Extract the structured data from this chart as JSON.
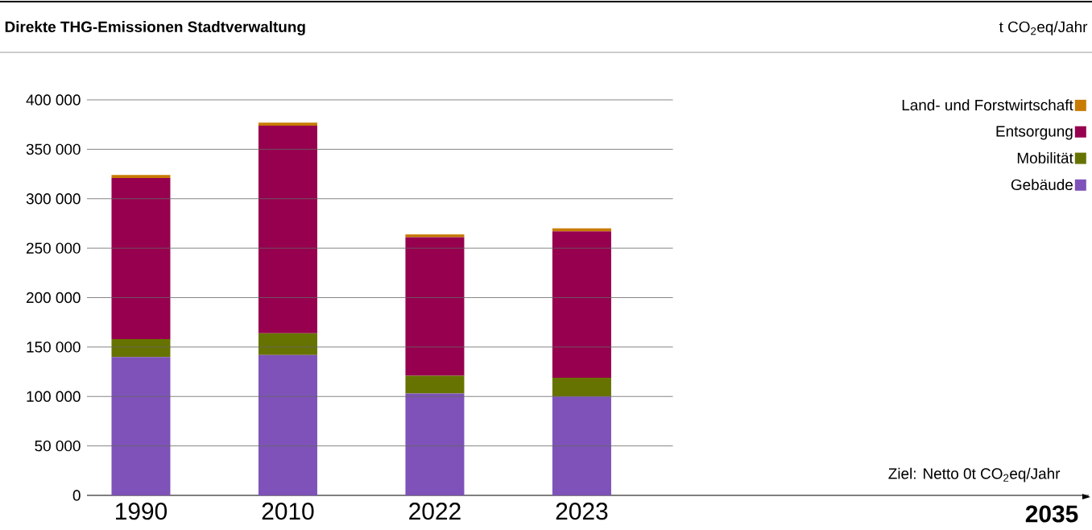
{
  "chart_data": {
    "type": "bar",
    "stacked": true,
    "title": "Direkte THG-Emissionen Stadtverwaltung",
    "categories": [
      "1990",
      "2010",
      "2022",
      "2023"
    ],
    "series": [
      {
        "name": "Gebäude",
        "color": "#7e52b8",
        "values": [
          140000,
          142000,
          103000,
          100000
        ]
      },
      {
        "name": "Mobilität",
        "color": "#677300",
        "values": [
          18000,
          22000,
          18000,
          19000
        ]
      },
      {
        "name": "Entsorgung",
        "color": "#96004f",
        "values": [
          163000,
          210000,
          140000,
          148000
        ]
      },
      {
        "name": "Land- und Forstwirtschaft",
        "color": "#c77b00",
        "values": [
          3000,
          3000,
          3000,
          3000
        ]
      }
    ],
    "ylim": [
      0,
      400000
    ],
    "yticks": [
      {
        "value": 0,
        "label": "0"
      },
      {
        "value": 50000,
        "label": "50 000"
      },
      {
        "value": 100000,
        "label": "100 000"
      },
      {
        "value": 150000,
        "label": "150 000"
      },
      {
        "value": 200000,
        "label": "200 000"
      },
      {
        "value": 250000,
        "label": "250 000"
      },
      {
        "value": 300000,
        "label": "300 000"
      },
      {
        "value": 350000,
        "label": "350 000"
      },
      {
        "value": 400000,
        "label": "400 000"
      }
    ],
    "grid": "y",
    "legend": "top right",
    "annotations": [
      "t CO$_{2}$eq/Jahr",
      "Ziel: Netto 0t CO$_{2}$eq/Jahr",
      "2035"
    ]
  }
}
